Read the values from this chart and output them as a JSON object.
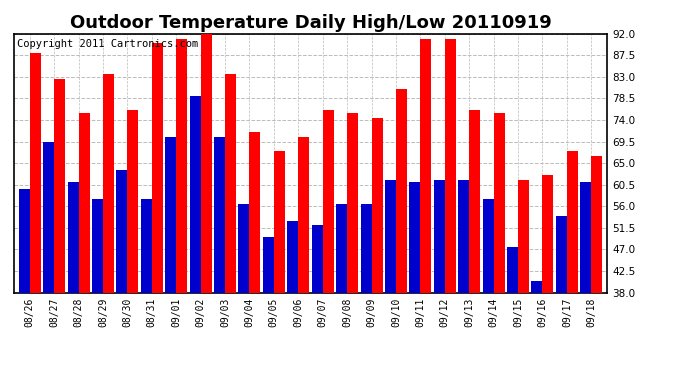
{
  "title": "Outdoor Temperature Daily High/Low 20110919",
  "copyright": "Copyright 2011 Cartronics.com",
  "dates": [
    "08/26",
    "08/27",
    "08/28",
    "08/29",
    "08/30",
    "08/31",
    "09/01",
    "09/02",
    "09/03",
    "09/04",
    "09/05",
    "09/06",
    "09/07",
    "09/08",
    "09/09",
    "09/10",
    "09/11",
    "09/12",
    "09/13",
    "09/14",
    "09/15",
    "09/16",
    "09/17",
    "09/18"
  ],
  "highs": [
    88.0,
    82.5,
    75.5,
    83.5,
    76.0,
    90.0,
    91.0,
    92.5,
    83.5,
    71.5,
    67.5,
    70.5,
    76.0,
    75.5,
    74.5,
    80.5,
    91.0,
    91.0,
    76.0,
    75.5,
    61.5,
    62.5,
    67.5,
    66.5
  ],
  "lows": [
    59.5,
    69.5,
    61.0,
    57.5,
    63.5,
    57.5,
    70.5,
    79.0,
    70.5,
    56.5,
    49.5,
    53.0,
    52.0,
    56.5,
    56.5,
    61.5,
    61.0,
    61.5,
    61.5,
    57.5,
    47.5,
    40.5,
    54.0,
    61.0
  ],
  "high_color": "#ff0000",
  "low_color": "#0000cc",
  "ylim": [
    38.0,
    92.0
  ],
  "yticks": [
    38.0,
    42.5,
    47.0,
    51.5,
    56.0,
    60.5,
    65.0,
    69.5,
    74.0,
    78.5,
    83.0,
    87.5,
    92.0
  ],
  "bg_color": "#ffffff",
  "grid_color": "#bbbbbb",
  "title_fontsize": 13,
  "copyright_fontsize": 7.5
}
